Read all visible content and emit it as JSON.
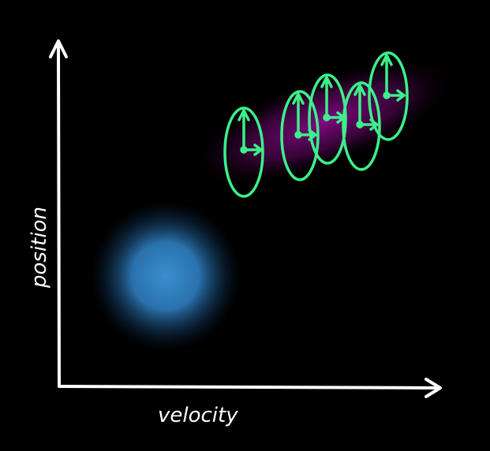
{
  "axes": {
    "x_label": "velocity",
    "y_label": "position"
  },
  "colors": {
    "background": "#000000",
    "axis": "#ffffff",
    "ellipse": "#3cf08a",
    "blue_blob": "#3a8fd0",
    "purple_glow": "#8a0a8a"
  }
}
